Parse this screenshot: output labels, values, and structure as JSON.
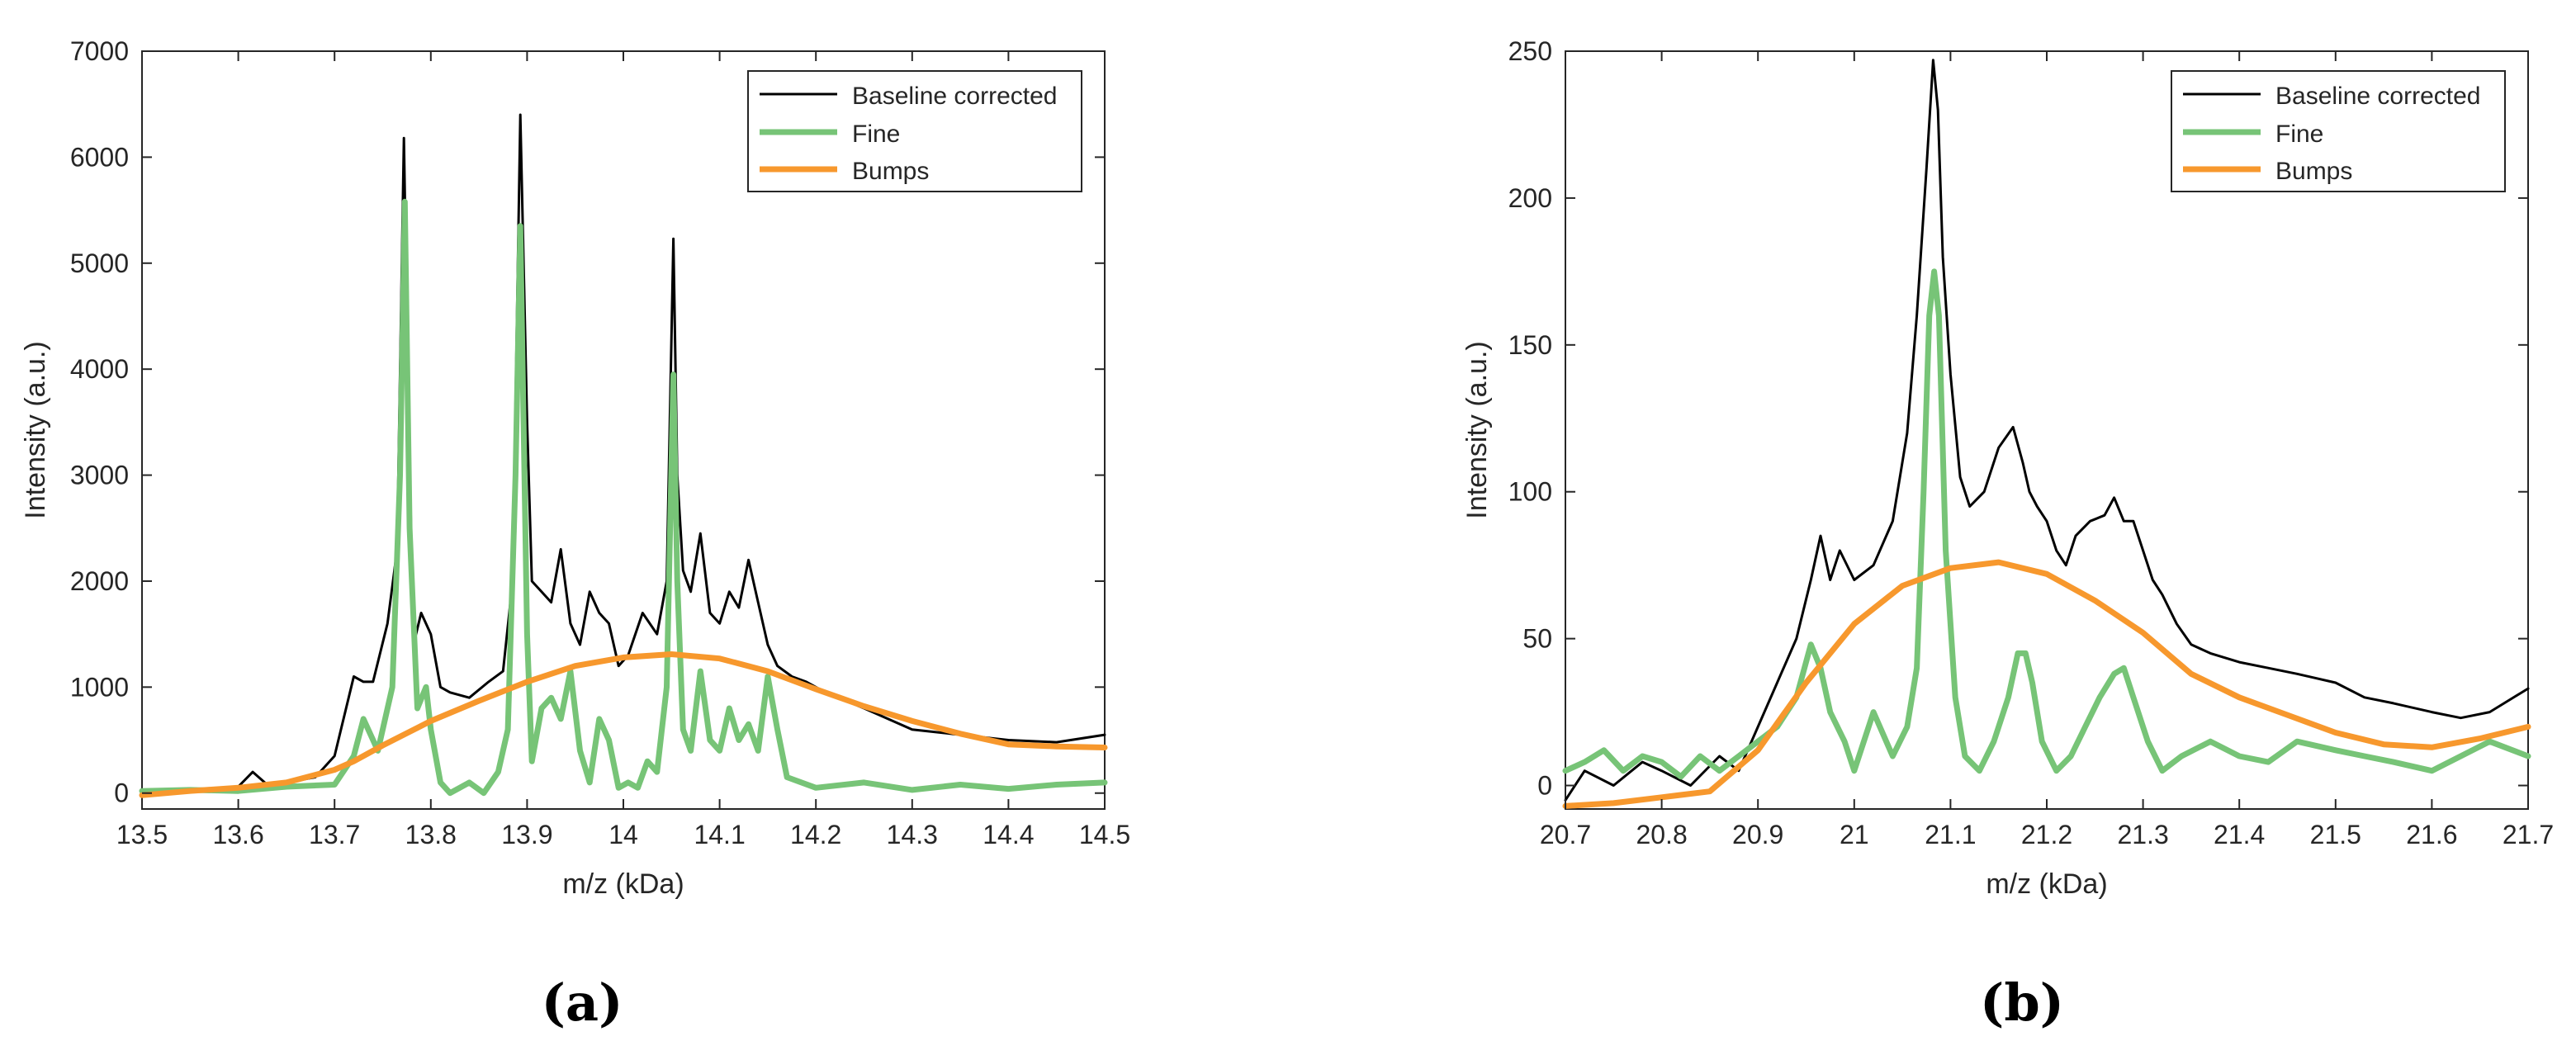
{
  "colors": {
    "baseline": "#000000",
    "fine": "#77c477",
    "bumps": "#f7982d",
    "axis": "#262626"
  },
  "chart_data": [
    {
      "type": "line",
      "panel_label": "(a)",
      "xlabel": "m/z (kDa)",
      "ylabel": "Intensity (a.u.)",
      "xlim": [
        13.5,
        14.5
      ],
      "ylim": [
        -150,
        7000
      ],
      "xticks": [
        13.5,
        13.6,
        13.7,
        13.8,
        13.9,
        14.0,
        14.1,
        14.2,
        14.3,
        14.4,
        14.5
      ],
      "xtick_labels": [
        "13.5",
        "13.6",
        "13.7",
        "13.8",
        "13.9",
        "14",
        "14.1",
        "14.2",
        "14.3",
        "14.4",
        "14.5"
      ],
      "yticks": [
        0,
        1000,
        2000,
        3000,
        4000,
        5000,
        6000,
        7000
      ],
      "ytick_labels": [
        "0",
        "1000",
        "2000",
        "3000",
        "4000",
        "5000",
        "6000",
        "7000"
      ],
      "legend": [
        "Baseline corrected",
        "Fine",
        "Bumps"
      ],
      "legend_location": "top-right",
      "series": [
        {
          "name": "Baseline corrected",
          "x": [
            13.5,
            13.55,
            13.6,
            13.615,
            13.63,
            13.65,
            13.68,
            13.7,
            13.72,
            13.73,
            13.74,
            13.755,
            13.765,
            13.772,
            13.776,
            13.782,
            13.79,
            13.8,
            13.81,
            13.82,
            13.84,
            13.86,
            13.875,
            13.885,
            13.893,
            13.9,
            13.905,
            13.915,
            13.925,
            13.935,
            13.945,
            13.955,
            13.965,
            13.975,
            13.985,
            13.995,
            14.005,
            14.02,
            14.035,
            14.045,
            14.052,
            14.056,
            14.062,
            14.07,
            14.08,
            14.09,
            14.1,
            14.11,
            14.12,
            14.13,
            14.14,
            14.15,
            14.16,
            14.175,
            14.19,
            14.21,
            14.25,
            14.3,
            14.35,
            14.4,
            14.45,
            14.5
          ],
          "y": [
            0,
            30,
            60,
            200,
            80,
            100,
            150,
            350,
            1100,
            1050,
            1050,
            1600,
            2300,
            6180,
            4000,
            1400,
            1700,
            1500,
            1000,
            950,
            900,
            1050,
            1150,
            2000,
            6400,
            3500,
            2000,
            1900,
            1800,
            2300,
            1600,
            1400,
            1900,
            1700,
            1600,
            1200,
            1300,
            1700,
            1500,
            2000,
            5230,
            3000,
            2100,
            1900,
            2450,
            1700,
            1600,
            1900,
            1750,
            2200,
            1800,
            1400,
            1200,
            1100,
            1050,
            950,
            800,
            600,
            550,
            500,
            480,
            550
          ]
        },
        {
          "name": "Fine",
          "x": [
            13.5,
            13.55,
            13.6,
            13.65,
            13.7,
            13.72,
            13.73,
            13.745,
            13.76,
            13.768,
            13.773,
            13.778,
            13.786,
            13.795,
            13.8,
            13.81,
            13.82,
            13.83,
            13.84,
            13.855,
            13.87,
            13.88,
            13.888,
            13.893,
            13.9,
            13.905,
            13.915,
            13.925,
            13.935,
            13.945,
            13.955,
            13.965,
            13.975,
            13.985,
            13.995,
            14.005,
            14.015,
            14.025,
            14.035,
            14.045,
            14.052,
            14.056,
            14.062,
            14.07,
            14.08,
            14.09,
            14.1,
            14.11,
            14.12,
            14.13,
            14.14,
            14.15,
            14.16,
            14.17,
            14.2,
            14.25,
            14.3,
            14.35,
            14.4,
            14.45,
            14.5
          ],
          "y": [
            20,
            30,
            20,
            60,
            80,
            350,
            700,
            400,
            1000,
            3000,
            5580,
            2500,
            800,
            1000,
            600,
            100,
            0,
            50,
            100,
            0,
            200,
            600,
            3000,
            5350,
            1500,
            300,
            800,
            900,
            700,
            1150,
            400,
            100,
            700,
            500,
            50,
            100,
            50,
            300,
            200,
            1000,
            3950,
            2000,
            600,
            400,
            1150,
            500,
            400,
            800,
            500,
            650,
            400,
            1100,
            600,
            150,
            50,
            100,
            30,
            80,
            40,
            80,
            100
          ]
        },
        {
          "name": "Bumps",
          "x": [
            13.5,
            13.55,
            13.6,
            13.65,
            13.7,
            13.72,
            13.75,
            13.8,
            13.85,
            13.9,
            13.95,
            14.0,
            14.05,
            14.1,
            14.15,
            14.2,
            14.25,
            14.3,
            14.35,
            14.4,
            14.45,
            14.5
          ],
          "y": [
            -20,
            20,
            50,
            100,
            220,
            300,
            450,
            680,
            870,
            1050,
            1200,
            1280,
            1310,
            1270,
            1150,
            980,
            820,
            680,
            560,
            460,
            440,
            430
          ]
        }
      ]
    },
    {
      "type": "line",
      "panel_label": "(b)",
      "xlabel": "m/z (kDa)",
      "ylabel": "Intensity (a.u.)",
      "xlim": [
        20.7,
        21.7
      ],
      "ylim": [
        -8,
        250
      ],
      "xticks": [
        20.7,
        20.8,
        20.9,
        21.0,
        21.1,
        21.2,
        21.3,
        21.4,
        21.5,
        21.6,
        21.7
      ],
      "xtick_labels": [
        "20.7",
        "20.8",
        "20.9",
        "21",
        "21.1",
        "21.2",
        "21.3",
        "21.4",
        "21.5",
        "21.6",
        "21.7"
      ],
      "yticks": [
        0,
        50,
        100,
        150,
        200,
        250
      ],
      "ytick_labels": [
        "0",
        "50",
        "100",
        "150",
        "200",
        "250"
      ],
      "legend": [
        "Baseline corrected",
        "Fine",
        "Bumps"
      ],
      "legend_location": "top-right",
      "series": [
        {
          "name": "Baseline corrected",
          "x": [
            20.7,
            20.72,
            20.75,
            20.78,
            20.8,
            20.83,
            20.86,
            20.88,
            20.9,
            20.92,
            20.94,
            20.955,
            20.965,
            20.975,
            20.985,
            21.0,
            21.02,
            21.04,
            21.055,
            21.065,
            21.075,
            21.082,
            21.087,
            21.092,
            21.1,
            21.11,
            21.12,
            21.135,
            21.15,
            21.165,
            21.175,
            21.182,
            21.19,
            21.2,
            21.21,
            21.22,
            21.23,
            21.245,
            21.26,
            21.27,
            21.28,
            21.29,
            21.3,
            21.31,
            21.32,
            21.335,
            21.35,
            21.37,
            21.4,
            21.43,
            21.46,
            21.5,
            21.53,
            21.56,
            21.6,
            21.63,
            21.66,
            21.7
          ],
          "y": [
            -5,
            5,
            0,
            8,
            5,
            0,
            10,
            5,
            20,
            35,
            50,
            70,
            85,
            70,
            80,
            70,
            75,
            90,
            120,
            160,
            210,
            247,
            230,
            180,
            140,
            105,
            95,
            100,
            115,
            122,
            110,
            100,
            95,
            90,
            80,
            75,
            85,
            90,
            92,
            98,
            90,
            90,
            80,
            70,
            65,
            55,
            48,
            45,
            42,
            40,
            38,
            35,
            30,
            28,
            25,
            23,
            25,
            33
          ]
        },
        {
          "name": "Fine",
          "x": [
            20.7,
            20.72,
            20.74,
            20.76,
            20.78,
            20.8,
            20.82,
            20.84,
            20.86,
            20.88,
            20.9,
            20.92,
            20.94,
            20.955,
            20.965,
            20.975,
            20.99,
            21.0,
            21.02,
            21.04,
            21.055,
            21.065,
            21.072,
            21.078,
            21.083,
            21.088,
            21.095,
            21.105,
            21.115,
            21.13,
            21.145,
            21.16,
            21.17,
            21.178,
            21.185,
            21.195,
            21.21,
            21.225,
            21.24,
            21.255,
            21.27,
            21.28,
            21.29,
            21.305,
            21.32,
            21.34,
            21.37,
            21.4,
            21.43,
            21.46,
            21.5,
            21.53,
            21.56,
            21.6,
            21.63,
            21.66,
            21.7
          ],
          "y": [
            5,
            8,
            12,
            5,
            10,
            8,
            3,
            10,
            5,
            10,
            15,
            20,
            30,
            48,
            40,
            25,
            15,
            5,
            25,
            10,
            20,
            40,
            100,
            160,
            175,
            160,
            80,
            30,
            10,
            5,
            15,
            30,
            45,
            45,
            35,
            15,
            5,
            10,
            20,
            30,
            38,
            40,
            30,
            15,
            5,
            10,
            15,
            10,
            8,
            15,
            12,
            10,
            8,
            5,
            10,
            15,
            10
          ]
        },
        {
          "name": "Bumps",
          "x": [
            20.7,
            20.75,
            20.8,
            20.85,
            20.9,
            20.95,
            21.0,
            21.05,
            21.1,
            21.15,
            21.2,
            21.25,
            21.3,
            21.35,
            21.4,
            21.45,
            21.5,
            21.55,
            21.6,
            21.65,
            21.7
          ],
          "y": [
            -7,
            -6,
            -4,
            -2,
            12,
            35,
            55,
            68,
            74,
            76,
            72,
            63,
            52,
            38,
            30,
            24,
            18,
            14,
            13,
            16,
            20
          ]
        }
      ]
    }
  ]
}
